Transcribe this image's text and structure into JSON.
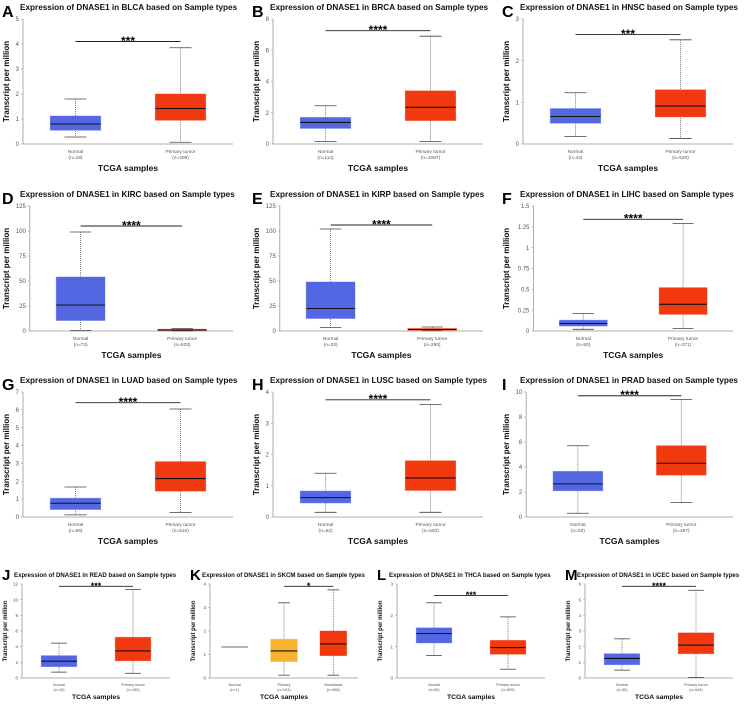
{
  "colors": {
    "normal": "#5467e2",
    "tumor": "#f2380f",
    "primary_skcm": "#f8b42e"
  },
  "chart_data": [
    {
      "type": "box",
      "letter": "A",
      "title": "Expression of DNASE1 in BLCA based on Sample types",
      "ylabel": "Transcript per million",
      "xlabel": "TCGA samples",
      "ylim": [
        0,
        5
      ],
      "ticks": [
        "0",
        "1",
        "2",
        "3",
        "4",
        "5"
      ],
      "groups": [
        {
          "label": "Normal",
          "n": "(n=19)",
          "color": "normal",
          "min": 0.28,
          "q1": 0.55,
          "median": 0.8,
          "q3": 1.12,
          "max": 1.8
        },
        {
          "label": "Primary tumor",
          "n": "(n=408)",
          "color": "tumor",
          "min": 0.07,
          "q1": 0.95,
          "median": 1.42,
          "q3": 2.0,
          "max": 3.85
        }
      ],
      "significance": {
        "label": "***",
        "from": 0,
        "to": 1,
        "y": 4.1
      }
    },
    {
      "type": "box",
      "letter": "B",
      "title": "Expression of DNASE1 in BRCA based on Sample types",
      "ylabel": "Transcript per million",
      "xlabel": "TCGA samples",
      "ylim": [
        0,
        8
      ],
      "ticks": [
        "0",
        "2",
        "4",
        "6",
        "8"
      ],
      "groups": [
        {
          "label": "Normal",
          "n": "(n=114)",
          "color": "normal",
          "min": 0.15,
          "q1": 1.0,
          "median": 1.38,
          "q3": 1.7,
          "max": 2.45
        },
        {
          "label": "Primary tumor",
          "n": "(n=1097)",
          "color": "tumor",
          "min": 0.15,
          "q1": 1.5,
          "median": 2.35,
          "q3": 3.4,
          "max": 6.9
        }
      ],
      "significance": {
        "label": "****",
        "from": 0,
        "to": 1,
        "y": 7.25
      }
    },
    {
      "type": "box",
      "letter": "C",
      "title": "Expression of DNASE1 in HNSC based on Sample types",
      "ylabel": "Transcript per million",
      "xlabel": "TCGA samples",
      "ylim": [
        0,
        3
      ],
      "ticks": [
        "0",
        "1",
        "2",
        "3"
      ],
      "groups": [
        {
          "label": "Normal",
          "n": "(n=44)",
          "color": "normal",
          "min": 0.18,
          "q1": 0.5,
          "median": 0.66,
          "q3": 0.85,
          "max": 1.23
        },
        {
          "label": "Primary tumor",
          "n": "(n=520)",
          "color": "tumor",
          "min": 0.13,
          "q1": 0.65,
          "median": 0.91,
          "q3": 1.3,
          "max": 2.5
        }
      ],
      "significance": {
        "label": "***",
        "from": 0,
        "to": 1,
        "y": 2.63
      }
    },
    {
      "type": "box",
      "letter": "D",
      "title": "Expression of DNASE1 in KIRC based on Sample types",
      "ylabel": "Transcript per million",
      "xlabel": "TCGA samples",
      "ylim": [
        0,
        125
      ],
      "ticks": [
        "0",
        "25",
        "50",
        "75",
        "100",
        "125"
      ],
      "groups": [
        {
          "label": "Normal",
          "n": "(n=72)",
          "color": "normal",
          "min": 0.5,
          "q1": 10.5,
          "median": 26,
          "q3": 54,
          "max": 99
        },
        {
          "label": "Primary tumor",
          "n": "(n=533)",
          "color": "tumor",
          "min": 0.2,
          "q1": 0.5,
          "median": 1,
          "q3": 1.8,
          "max": 2.5
        }
      ],
      "significance": {
        "label": "****",
        "from": 0,
        "to": 1,
        "y": 105
      }
    },
    {
      "type": "box",
      "letter": "E",
      "title": "Expression of DNASE1 in KIRP based on Sample types",
      "ylabel": "Transcript per million",
      "xlabel": "TCGA samples",
      "ylim": [
        0,
        125
      ],
      "ticks": [
        "0",
        "25",
        "50",
        "75",
        "100",
        "125"
      ],
      "groups": [
        {
          "label": "Normal",
          "n": "(n=32)",
          "color": "normal",
          "min": 3.5,
          "q1": 12.5,
          "median": 22.5,
          "q3": 49,
          "max": 102
        },
        {
          "label": "Primary tumor",
          "n": "(n=290)",
          "color": "tumor",
          "min": 0.3,
          "q1": 0.8,
          "median": 1.5,
          "q3": 2.5,
          "max": 4
        }
      ],
      "significance": {
        "label": "****",
        "from": 0,
        "to": 1,
        "y": 106
      }
    },
    {
      "type": "box",
      "letter": "F",
      "title": "Expression of DNASE1 in LIHC based on Sample types",
      "ylabel": "Transcript per million",
      "xlabel": "TCGA samples",
      "ylim": [
        0,
        1.5
      ],
      "ticks": [
        "0",
        "0.25",
        "0.5",
        "0.75",
        "1",
        "1.25",
        "1.5"
      ],
      "groups": [
        {
          "label": "Normal",
          "n": "(n=50)",
          "color": "normal",
          "min": 0.02,
          "q1": 0.06,
          "median": 0.09,
          "q3": 0.13,
          "max": 0.21
        },
        {
          "label": "Primary tumor",
          "n": "(n=371)",
          "color": "tumor",
          "min": 0.03,
          "q1": 0.2,
          "median": 0.32,
          "q3": 0.52,
          "max": 1.29
        }
      ],
      "significance": {
        "label": "****",
        "from": 0,
        "to": 1,
        "y": 1.34
      }
    },
    {
      "type": "box",
      "letter": "G",
      "title": "Expression of DNASE1 in LUAD based on Sample types",
      "ylabel": "Transcript per million",
      "xlabel": "TCGA samples",
      "ylim": [
        0,
        7
      ],
      "ticks": [
        "0",
        "1",
        "2",
        "3",
        "4",
        "5",
        "6",
        "7"
      ],
      "groups": [
        {
          "label": "Normal",
          "n": "(n=59)",
          "color": "normal",
          "min": 0.12,
          "q1": 0.42,
          "median": 0.77,
          "q3": 1.05,
          "max": 1.68
        },
        {
          "label": "Primary tumor",
          "n": "(n=515)",
          "color": "tumor",
          "min": 0.25,
          "q1": 1.45,
          "median": 2.15,
          "q3": 3.1,
          "max": 6.05
        }
      ],
      "significance": {
        "label": "****",
        "from": 0,
        "to": 1,
        "y": 6.4
      }
    },
    {
      "type": "box",
      "letter": "H",
      "title": "Expression of DNASE1 in LUSC based on Sample types",
      "ylabel": "Transcript per million",
      "xlabel": "TCGA samples",
      "ylim": [
        0,
        4
      ],
      "ticks": [
        "0",
        "1",
        "2",
        "3",
        "4"
      ],
      "groups": [
        {
          "label": "Normal",
          "n": "(n=52)",
          "color": "normal",
          "min": 0.15,
          "q1": 0.45,
          "median": 0.62,
          "q3": 0.83,
          "max": 1.4
        },
        {
          "label": "Primary tumor",
          "n": "(n=503)",
          "color": "tumor",
          "min": 0.15,
          "q1": 0.85,
          "median": 1.25,
          "q3": 1.8,
          "max": 3.6
        }
      ],
      "significance": {
        "label": "****",
        "from": 0,
        "to": 1,
        "y": 3.75
      }
    },
    {
      "type": "box",
      "letter": "I",
      "title": "Expression of DNASE1 in PRAD based on Sample types",
      "ylabel": "Transcript per million",
      "xlabel": "TCGA samples",
      "ylim": [
        0,
        10
      ],
      "ticks": [
        "0",
        "2",
        "4",
        "6",
        "8",
        "10"
      ],
      "groups": [
        {
          "label": "Normal",
          "n": "(n=52)",
          "color": "normal",
          "min": 0.3,
          "q1": 2.1,
          "median": 2.65,
          "q3": 3.65,
          "max": 5.7
        },
        {
          "label": "Primary tumor",
          "n": "(n=497)",
          "color": "tumor",
          "min": 1.15,
          "q1": 3.35,
          "median": 4.3,
          "q3": 5.7,
          "max": 9.4
        }
      ],
      "significance": {
        "label": "****",
        "from": 0,
        "to": 1,
        "y": 9.7
      }
    },
    {
      "type": "box",
      "letter": "J",
      "title": "Expression of DNASE1 in READ based on Sample types",
      "ylabel": "Transcript per million",
      "xlabel": "TCGA samples",
      "ylim": [
        0,
        12
      ],
      "ticks": [
        "0",
        "2",
        "4",
        "6",
        "8",
        "10",
        "12"
      ],
      "groups": [
        {
          "label": "Normal",
          "n": "(n=10)",
          "color": "normal",
          "min": 0.75,
          "q1": 1.45,
          "median": 2.15,
          "q3": 2.85,
          "max": 4.45
        },
        {
          "label": "Primary tumor",
          "n": "(n=166)",
          "color": "tumor",
          "min": 0.6,
          "q1": 2.2,
          "median": 3.45,
          "q3": 5.2,
          "max": 11.3
        }
      ],
      "significance": {
        "label": "***",
        "from": 0,
        "to": 1,
        "y": 11.7
      }
    },
    {
      "type": "box",
      "letter": "K",
      "title": "Expression of DNASE1 in SKCM based on Sample types",
      "ylabel": "Transcript per million",
      "xlabel": "TCGA samples",
      "ylim": [
        0,
        4
      ],
      "ticks": [
        "0",
        "1",
        "2",
        "3",
        "4"
      ],
      "groups": [
        {
          "label": "Normal",
          "n": "(n=1)",
          "color": "normal",
          "min": 1.32,
          "q1": 1.32,
          "median": 1.32,
          "q3": 1.32,
          "max": 1.32,
          "single": true
        },
        {
          "label": "Primary",
          "n": "(n=104)",
          "color": "primary_skcm",
          "min": 0.12,
          "q1": 0.7,
          "median": 1.15,
          "q3": 1.65,
          "max": 3.2
        },
        {
          "label": "Metastasis",
          "n": "(n=368)",
          "color": "tumor",
          "min": 0.12,
          "q1": 0.95,
          "median": 1.45,
          "q3": 2.0,
          "max": 3.75
        }
      ],
      "significance": {
        "label": "*",
        "from": 1,
        "to": 2,
        "y": 3.9
      }
    },
    {
      "type": "box",
      "letter": "L",
      "title": "Expression of DNASE1 in THCA based on Sample types",
      "ylabel": "Transcript per million",
      "xlabel": "TCGA samples",
      "ylim": [
        0,
        3
      ],
      "ticks": [
        "0",
        "1",
        "2",
        "3"
      ],
      "groups": [
        {
          "label": "Normal",
          "n": "(n=59)",
          "color": "normal",
          "min": 0.72,
          "q1": 1.12,
          "median": 1.42,
          "q3": 1.6,
          "max": 2.4
        },
        {
          "label": "Primary tumor",
          "n": "(n=505)",
          "color": "tumor",
          "min": 0.28,
          "q1": 0.76,
          "median": 0.97,
          "q3": 1.2,
          "max": 1.95
        }
      ],
      "significance": {
        "label": "***",
        "from": 0,
        "to": 1,
        "y": 2.63
      }
    },
    {
      "type": "box",
      "letter": "M",
      "title": "Expression of DNASE1 in UCEC based on Sample types",
      "ylabel": "Transcript per million",
      "xlabel": "TCGA samples",
      "ylim": [
        0,
        6
      ],
      "ticks": [
        "0",
        "1",
        "2",
        "3",
        "4",
        "5",
        "6"
      ],
      "groups": [
        {
          "label": "Normal",
          "n": "(n=35)",
          "color": "normal",
          "min": 0.5,
          "q1": 0.85,
          "median": 1.25,
          "q3": 1.55,
          "max": 2.5
        },
        {
          "label": "Primary tumor",
          "n": "(n=546)",
          "color": "tumor",
          "min": 0.03,
          "q1": 1.55,
          "median": 2.1,
          "q3": 2.88,
          "max": 5.6
        }
      ],
      "significance": {
        "label": "****",
        "from": 0,
        "to": 1,
        "y": 5.85
      }
    }
  ]
}
